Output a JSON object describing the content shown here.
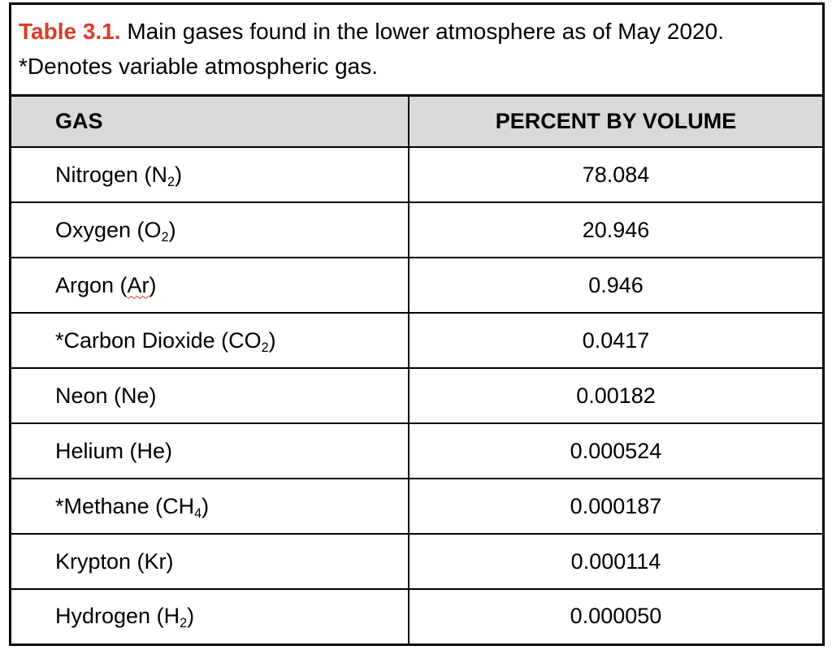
{
  "caption": {
    "label": "Table 3.1.",
    "rest": " Main gases found in the lower atmosphere as of May 2020.",
    "line2": "*Denotes variable atmospheric gas."
  },
  "colors": {
    "caption_label": "#de3b26",
    "header_bg": "#d9d9d9",
    "squiggle": "#ef2f1a"
  },
  "table": {
    "columns": [
      {
        "label": "GAS"
      },
      {
        "label": "PERCENT BY VOLUME"
      }
    ],
    "rows": [
      {
        "gas_parts": [
          {
            "t": "Nitrogen (N"
          },
          {
            "t": "2",
            "sub": true
          },
          {
            "t": ")"
          }
        ],
        "value": "78.084"
      },
      {
        "gas_parts": [
          {
            "t": "Oxygen (O"
          },
          {
            "t": "2",
            "sub": true
          },
          {
            "t": ")"
          }
        ],
        "value": "20.946"
      },
      {
        "gas_parts": [
          {
            "t": "Argon ("
          },
          {
            "t": "Ar",
            "squiggle": true
          },
          {
            "t": ")"
          }
        ],
        "value": "0.946"
      },
      {
        "gas_parts": [
          {
            "t": "*Carbon Dioxide (CO"
          },
          {
            "t": "2",
            "sub": true
          },
          {
            "t": ")"
          }
        ],
        "value": "0.0417"
      },
      {
        "gas_parts": [
          {
            "t": "Neon (Ne)"
          }
        ],
        "value": "0.00182"
      },
      {
        "gas_parts": [
          {
            "t": "Helium (He)"
          }
        ],
        "value": "0.000524"
      },
      {
        "gas_parts": [
          {
            "t": "*Methane (CH"
          },
          {
            "t": "4",
            "sub": true
          },
          {
            "t": ")"
          }
        ],
        "value": "0.000187"
      },
      {
        "gas_parts": [
          {
            "t": "Krypton (Kr)"
          }
        ],
        "value": "0.000114"
      },
      {
        "gas_parts": [
          {
            "t": "Hydrogen (H"
          },
          {
            "t": "2",
            "sub": true
          },
          {
            "t": ")"
          }
        ],
        "value": "0.000050"
      }
    ]
  }
}
